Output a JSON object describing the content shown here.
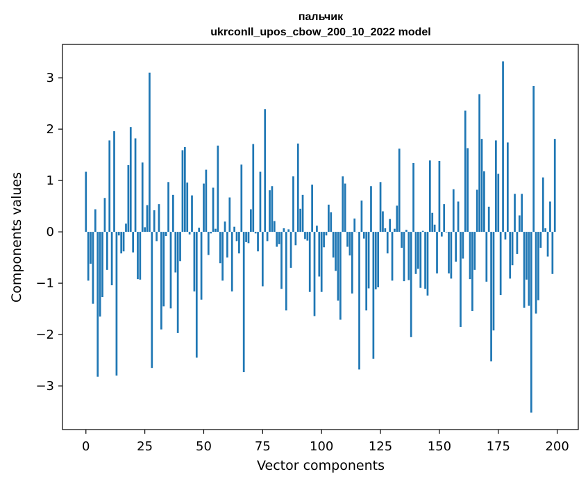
{
  "chart_data": {
    "type": "bar",
    "title_line1": "пальчик",
    "title_line2": "ukrconll_upos_cbow_200_10_2022 model",
    "xlabel": "Vector components",
    "ylabel": "Components values",
    "xlim": [
      -9.95,
      208.95
    ],
    "ylim": [
      -3.85,
      3.65
    ],
    "xticks": [
      0,
      25,
      50,
      75,
      100,
      125,
      150,
      175,
      200
    ],
    "xtick_labels": [
      "0",
      "25",
      "50",
      "75",
      "100",
      "125",
      "150",
      "175",
      "200"
    ],
    "yticks": [
      -3,
      -2,
      -1,
      0,
      1,
      2,
      3
    ],
    "ytick_labels": [
      "−3",
      "−2",
      "−1",
      "0",
      "1",
      "2",
      "3"
    ],
    "grid": false,
    "bar_color": "#1f77b4",
    "x": [
      0,
      1,
      2,
      3,
      4,
      5,
      6,
      7,
      8,
      9,
      10,
      11,
      12,
      13,
      14,
      15,
      16,
      17,
      18,
      19,
      20,
      21,
      22,
      23,
      24,
      25,
      26,
      27,
      28,
      29,
      30,
      31,
      32,
      33,
      34,
      35,
      36,
      37,
      38,
      39,
      40,
      41,
      42,
      43,
      44,
      45,
      46,
      47,
      48,
      49,
      50,
      51,
      52,
      53,
      54,
      55,
      56,
      57,
      58,
      59,
      60,
      61,
      62,
      63,
      64,
      65,
      66,
      67,
      68,
      69,
      70,
      71,
      72,
      73,
      74,
      75,
      76,
      77,
      78,
      79,
      80,
      81,
      82,
      83,
      84,
      85,
      86,
      87,
      88,
      89,
      90,
      91,
      92,
      93,
      94,
      95,
      96,
      97,
      98,
      99,
      100,
      101,
      102,
      103,
      104,
      105,
      106,
      107,
      108,
      109,
      110,
      111,
      112,
      113,
      114,
      115,
      116,
      117,
      118,
      119,
      120,
      121,
      122,
      123,
      124,
      125,
      126,
      127,
      128,
      129,
      130,
      131,
      132,
      133,
      134,
      135,
      136,
      137,
      138,
      139,
      140,
      141,
      142,
      143,
      144,
      145,
      146,
      147,
      148,
      149,
      150,
      151,
      152,
      153,
      154,
      155,
      156,
      157,
      158,
      159,
      160,
      161,
      162,
      163,
      164,
      165,
      166,
      167,
      168,
      169,
      170,
      171,
      172,
      173,
      174,
      175,
      176,
      177,
      178,
      179,
      180,
      181,
      182,
      183,
      184,
      185,
      186,
      187,
      188,
      189,
      190,
      191,
      192,
      193,
      194,
      195,
      196,
      197,
      198,
      199
    ],
    "values": [
      1.17,
      -0.95,
      -0.62,
      -1.4,
      0.44,
      -2.82,
      -1.65,
      -1.27,
      0.66,
      -0.74,
      1.78,
      -1.04,
      1.96,
      -2.8,
      -0.07,
      -0.42,
      -0.38,
      0.16,
      1.3,
      2.04,
      -0.4,
      1.82,
      -0.92,
      -0.93,
      1.35,
      0.09,
      0.52,
      3.1,
      -2.65,
      0.42,
      -0.18,
      0.54,
      -1.9,
      -1.45,
      -0.08,
      0.97,
      -1.49,
      0.72,
      -0.79,
      -1.97,
      -0.57,
      1.59,
      1.65,
      0.96,
      -0.05,
      0.71,
      -1.16,
      -2.45,
      0.08,
      -1.32,
      0.94,
      1.21,
      -0.45,
      -0.03,
      0.86,
      0.06,
      1.68,
      -0.61,
      -0.95,
      0.2,
      -0.5,
      0.67,
      -1.16,
      0.1,
      -0.18,
      -0.42,
      1.31,
      -2.73,
      -0.2,
      -0.22,
      0.44,
      1.71,
      -0.03,
      -0.38,
      1.17,
      -1.06,
      2.39,
      -0.18,
      0.81,
      0.89,
      0.21,
      -0.29,
      -0.24,
      -1.11,
      0.07,
      -1.53,
      0.05,
      -0.7,
      1.08,
      -0.26,
      1.72,
      0.45,
      0.72,
      -0.14,
      -0.17,
      -1.17,
      0.92,
      -1.64,
      0.12,
      -0.87,
      -1.17,
      -0.3,
      -0.07,
      0.53,
      0.38,
      -0.5,
      -0.76,
      -1.34,
      -1.71,
      1.08,
      0.94,
      -0.29,
      -0.46,
      -1.2,
      0.26,
      0.0,
      -2.68,
      0.61,
      -0.13,
      -1.53,
      -1.1,
      0.89,
      -2.47,
      -1.12,
      -1.08,
      0.97,
      0.4,
      0.07,
      -0.42,
      0.25,
      -0.95,
      0.06,
      0.51,
      1.62,
      -0.31,
      -0.96,
      0.04,
      -0.94,
      -2.05,
      1.34,
      -0.82,
      -0.72,
      -1.09,
      0.02,
      -1.11,
      -1.24,
      1.39,
      0.37,
      0.14,
      -0.81,
      1.38,
      -0.09,
      0.54,
      -0.01,
      -0.81,
      -0.91,
      0.83,
      -0.58,
      0.59,
      -1.85,
      -0.52,
      2.36,
      1.63,
      -0.92,
      -1.54,
      -0.74,
      0.82,
      2.68,
      1.81,
      1.18,
      -0.97,
      0.49,
      -2.52,
      -1.92,
      1.78,
      1.13,
      -1.23,
      3.32,
      -0.15,
      1.74,
      -0.91,
      -0.65,
      0.74,
      -0.43,
      0.32,
      0.74,
      -1.48,
      -0.93,
      -1.44,
      -3.52,
      2.84,
      -1.59,
      -1.33,
      -0.31,
      1.06,
      0.07,
      -0.48,
      0.59,
      -0.82,
      1.81
    ]
  }
}
